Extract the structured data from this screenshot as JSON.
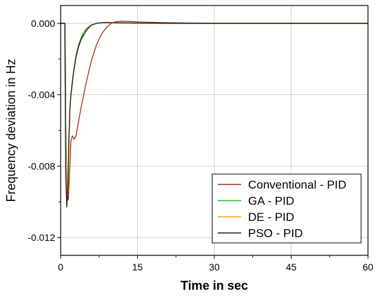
{
  "chart_data": {
    "type": "line",
    "title": "",
    "xlabel": "Time in sec",
    "ylabel": "Frequency deviation in Hz",
    "xlim": [
      0,
      60
    ],
    "ylim": [
      -0.013,
      0.001
    ],
    "x_ticks": [
      0,
      15,
      30,
      45,
      60
    ],
    "x_tick_labels": [
      "0",
      "15",
      "30",
      "45",
      "60"
    ],
    "y_ticks": [
      0.0,
      -0.004,
      -0.008,
      -0.012
    ],
    "y_tick_labels": [
      "0.000",
      "-0.004",
      "-0.008",
      "-0.012"
    ],
    "grid": true,
    "legend_position": "bottom-right",
    "series": [
      {
        "name": "Conventional - PID",
        "color": "#a52a1a",
        "x": [
          0,
          0.9,
          1.0,
          1.2,
          1.5,
          1.8,
          2.0,
          2.3,
          2.6,
          3.0,
          3.5,
          4.0,
          5.0,
          6.0,
          7.0,
          8.0,
          9.0,
          10.0,
          11.0,
          12.0,
          14.0,
          16.0,
          20.0,
          25.0,
          30.0,
          40.0,
          50.0,
          60.0
        ],
        "y": [
          0,
          0,
          -0.0055,
          -0.0095,
          -0.0099,
          -0.008,
          -0.0066,
          -0.0063,
          -0.0065,
          -0.0063,
          -0.0055,
          -0.0047,
          -0.0033,
          -0.0021,
          -0.0012,
          -0.0006,
          -0.0002,
          2e-05,
          0.0001,
          0.00012,
          0.0001,
          7e-05,
          4e-05,
          2e-05,
          1e-05,
          0.0,
          0.0,
          0.0
        ]
      },
      {
        "name": "GA - PID",
        "color": "#22c322",
        "x": [
          0,
          0.9,
          1.0,
          1.2,
          1.4,
          1.6,
          1.8,
          2.0,
          2.5,
          3.0,
          3.5,
          4.0,
          4.5,
          5.0,
          6.0,
          7.0,
          8.0,
          9.0,
          10.0,
          12.0,
          15.0,
          20.0,
          30.0,
          40.0,
          50.0,
          60.0
        ],
        "y": [
          0,
          0,
          -0.006,
          -0.009,
          -0.0096,
          -0.007,
          -0.005,
          -0.004,
          -0.0027,
          -0.0018,
          -0.0012,
          -0.0008,
          -0.0005,
          -0.0003,
          -0.0001,
          0.0,
          3e-05,
          3e-05,
          2e-05,
          1e-05,
          0.0,
          0.0,
          0.0,
          0.0,
          0.0,
          0.0
        ]
      },
      {
        "name": "DE - PID",
        "color": "#f0a020",
        "x": [
          0,
          0.9,
          1.0,
          1.2,
          1.4,
          1.6,
          1.8,
          2.0,
          2.5,
          3.0,
          3.5,
          4.0,
          5.0,
          6.0,
          7.0,
          8.0,
          10.0,
          12.0,
          15.0,
          20.0,
          30.0,
          40.0,
          50.0,
          60.0
        ],
        "y": [
          0,
          0,
          -0.0065,
          -0.01,
          -0.0094,
          -0.0068,
          -0.005,
          -0.0041,
          -0.0028,
          -0.0019,
          -0.0013,
          -0.0009,
          -0.0004,
          -0.0001,
          0.0,
          2e-05,
          2e-05,
          1e-05,
          0.0,
          0.0,
          0.0,
          0.0,
          0.0,
          0.0
        ]
      },
      {
        "name": "PSO - PID",
        "color": "#1a1a1a",
        "x": [
          0,
          0.8,
          0.9,
          1.0,
          1.2,
          1.4,
          1.6,
          1.8,
          2.0,
          2.5,
          3.0,
          3.5,
          4.0,
          5.0,
          6.0,
          7.0,
          8.0,
          9.0,
          10.0,
          12.0,
          15.0,
          20.0,
          25.0,
          30.0,
          40.0,
          50.0,
          60.0
        ],
        "y": [
          0,
          0,
          -0.004,
          -0.0085,
          -0.0103,
          -0.0092,
          -0.0066,
          -0.0048,
          -0.004,
          -0.0028,
          -0.0019,
          -0.0013,
          -0.0009,
          -0.0004,
          -0.0001,
          0.0,
          4e-05,
          5e-05,
          4e-05,
          3e-05,
          2e-05,
          1e-05,
          0.0,
          0.0,
          0.0,
          0.0,
          0.0
        ]
      }
    ]
  }
}
